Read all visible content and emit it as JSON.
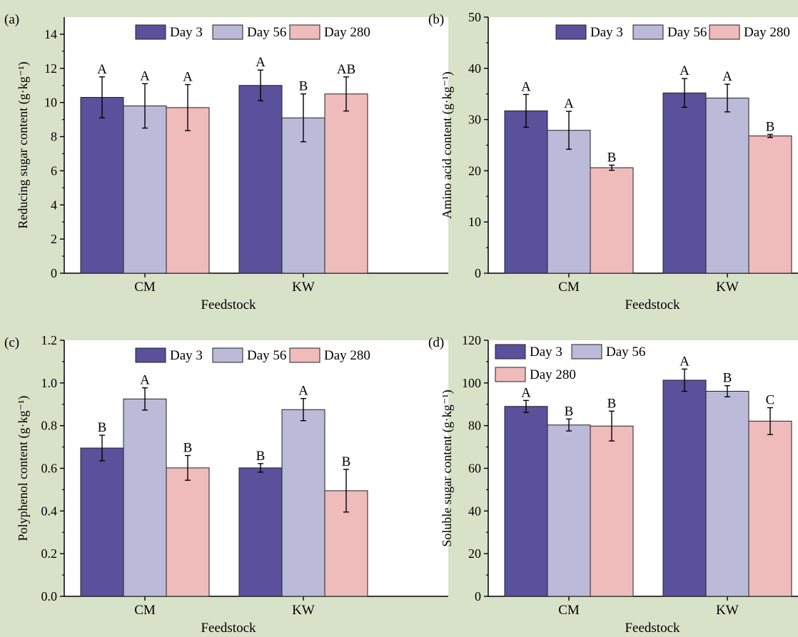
{
  "colors": {
    "background": "#d8e2c8",
    "plot_bg": "#ffffff",
    "day3": "#5a509c",
    "day56": "#bbbad8",
    "day280": "#efbbbb"
  },
  "chart_data": [
    {
      "panel_label": "(a)",
      "type": "bar",
      "categories": [
        "CM",
        "KW"
      ],
      "xlabel": "Feedstock",
      "ylabel": "Reducing sugar content (g·kg⁻¹)",
      "ylim": [
        0,
        15
      ],
      "yticks": [
        0,
        2,
        4,
        6,
        8,
        10,
        12,
        14
      ],
      "ytick_labels": [
        "0",
        "2",
        "4",
        "6",
        "8",
        "10",
        "12",
        "14"
      ],
      "legend": {
        "placement": "top-right",
        "rows": 1
      },
      "series": [
        {
          "name": "Day 3",
          "values": [
            10.3,
            11.0
          ],
          "errors": [
            1.2,
            0.9
          ],
          "letters": [
            "A",
            "A"
          ]
        },
        {
          "name": "Day 56",
          "values": [
            9.8,
            9.1
          ],
          "errors": [
            1.3,
            1.4
          ],
          "letters": [
            "A",
            "B"
          ]
        },
        {
          "name": "Day 280",
          "values": [
            9.7,
            10.5
          ],
          "errors": [
            1.35,
            1.0
          ],
          "letters": [
            "A",
            "AB"
          ]
        }
      ]
    },
    {
      "panel_label": "(b)",
      "type": "bar",
      "categories": [
        "CM",
        "KW"
      ],
      "xlabel": "Feedstock",
      "ylabel": "Amino acid content (g·kg⁻¹)",
      "ylim": [
        0,
        50
      ],
      "yticks": [
        0,
        10,
        20,
        30,
        40,
        50
      ],
      "ytick_labels": [
        "0",
        "10",
        "20",
        "30",
        "40",
        "50"
      ],
      "legend": {
        "placement": "top-right",
        "rows": 1
      },
      "series": [
        {
          "name": "Day 3",
          "values": [
            31.7,
            35.2
          ],
          "errors": [
            3.2,
            2.8
          ],
          "letters": [
            "A",
            "A"
          ]
        },
        {
          "name": "Day 56",
          "values": [
            27.9,
            34.2
          ],
          "errors": [
            3.7,
            2.7
          ],
          "letters": [
            "A",
            "A"
          ]
        },
        {
          "name": "Day 280",
          "values": [
            20.6,
            26.8
          ],
          "errors": [
            0.5,
            0.3
          ],
          "letters": [
            "B",
            "B"
          ]
        }
      ]
    },
    {
      "panel_label": "(c)",
      "type": "bar",
      "categories": [
        "CM",
        "KW"
      ],
      "xlabel": "Feedstock",
      "ylabel": "Polyphenol content (g·kg⁻¹)",
      "ylim": [
        0,
        1.2
      ],
      "yticks": [
        0,
        0.2,
        0.4,
        0.6,
        0.8,
        1.0,
        1.2
      ],
      "ytick_labels": [
        "0.0",
        "0.2",
        "0.4",
        "0.6",
        "0.8",
        "1.0",
        "1.2"
      ],
      "legend": {
        "placement": "top-right",
        "rows": 1
      },
      "series": [
        {
          "name": "Day 3",
          "values": [
            0.695,
            0.602
          ],
          "errors": [
            0.06,
            0.02
          ],
          "letters": [
            "B",
            "B"
          ]
        },
        {
          "name": "Day 56",
          "values": [
            0.925,
            0.875
          ],
          "errors": [
            0.052,
            0.052
          ],
          "letters": [
            "A",
            "A"
          ]
        },
        {
          "name": "Day 280",
          "values": [
            0.602,
            0.495
          ],
          "errors": [
            0.058,
            0.1
          ],
          "letters": [
            "B",
            "B"
          ]
        }
      ]
    },
    {
      "panel_label": "(d)",
      "type": "bar",
      "categories": [
        "CM",
        "KW"
      ],
      "xlabel": "Feedstock",
      "ylabel": "Soluble sugar content (g·kg⁻¹)",
      "ylim": [
        0,
        120
      ],
      "yticks": [
        0,
        20,
        40,
        60,
        80,
        100,
        120
      ],
      "ytick_labels": [
        "0",
        "20",
        "40",
        "60",
        "80",
        "100",
        "120"
      ],
      "legend": {
        "placement": "top-left",
        "rows": 2
      },
      "series": [
        {
          "name": "Day 3",
          "values": [
            89.0,
            101.3
          ],
          "errors": [
            2.8,
            5.2
          ],
          "letters": [
            "A",
            "A"
          ]
        },
        {
          "name": "Day 56",
          "values": [
            80.3,
            96.1
          ],
          "errors": [
            2.8,
            2.6
          ],
          "letters": [
            "B",
            "B"
          ]
        },
        {
          "name": "Day 280",
          "values": [
            79.8,
            82.1
          ],
          "errors": [
            7.0,
            6.3
          ],
          "letters": [
            "B",
            "C"
          ]
        }
      ]
    }
  ]
}
